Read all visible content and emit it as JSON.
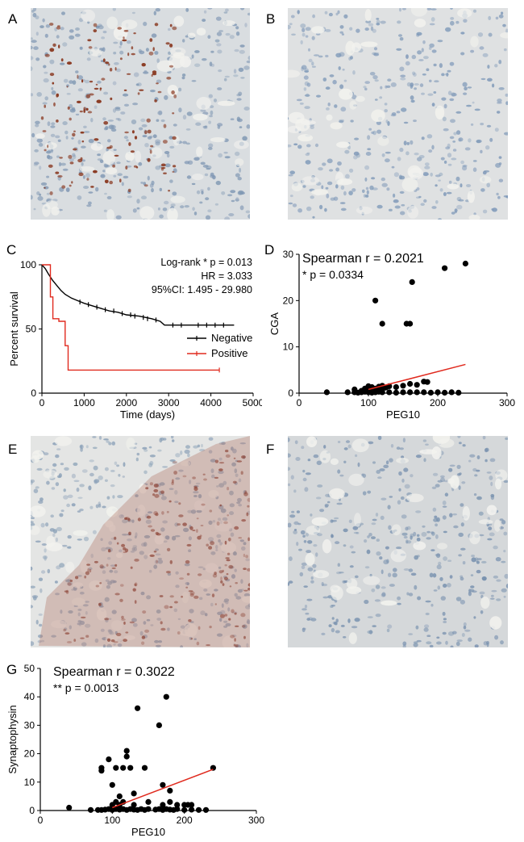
{
  "panels": {
    "A": "A",
    "B": "B",
    "C": "C",
    "D": "D",
    "E": "E",
    "F": "F",
    "G": "G"
  },
  "micrographs": [
    {
      "panel": "A",
      "stain": "brown-dots",
      "palette": {
        "bg": "#d9dde0",
        "cell": "#7f97b3",
        "mark": "#8a3a22"
      }
    },
    {
      "panel": "B",
      "stain": "none",
      "palette": {
        "bg": "#dfe1e2",
        "cell": "#7e98b8",
        "mark": ""
      }
    },
    {
      "panel": "E",
      "stain": "reddish-diffuse",
      "palette": {
        "bg": "#e4e5e4",
        "cell": "#8aa0b7",
        "mark": "#b07060"
      }
    },
    {
      "panel": "F",
      "stain": "none",
      "palette": {
        "bg": "#d5d8da",
        "cell": "#7790ae",
        "mark": ""
      }
    }
  ],
  "chart_data": [
    {
      "panel": "C",
      "type": "line",
      "xlabel": "Time (days)",
      "ylabel": "Percent survival",
      "xlim": [
        0,
        5000
      ],
      "ylim": [
        0,
        100
      ],
      "xticks": [
        "0",
        "1000",
        "2000",
        "3000",
        "4000",
        "5000"
      ],
      "yticks": [
        "0",
        "50",
        "100"
      ],
      "annotations": [
        "Log-rank * p = 0.013",
        "HR = 3.033",
        "95%CI: 1.495 - 29.980"
      ],
      "legend_position": "right",
      "series": [
        {
          "name": "Negative",
          "color": "#000000",
          "points": [
            [
              0,
              100
            ],
            [
              80,
              97
            ],
            [
              150,
              93
            ],
            [
              250,
              88
            ],
            [
              350,
              84
            ],
            [
              450,
              80
            ],
            [
              550,
              77
            ],
            [
              700,
              74
            ],
            [
              850,
              72
            ],
            [
              1000,
              70
            ],
            [
              1200,
              68
            ],
            [
              1400,
              66
            ],
            [
              1600,
              64
            ],
            [
              1800,
              63
            ],
            [
              2000,
              61
            ],
            [
              2300,
              60
            ],
            [
              2600,
              58
            ],
            [
              2800,
              56
            ],
            [
              2900,
              53
            ],
            [
              3500,
              53
            ],
            [
              4000,
              53
            ],
            [
              4550,
              53
            ]
          ],
          "censored": [
            [
              900,
              71
            ],
            [
              1100,
              69
            ],
            [
              1300,
              67
            ],
            [
              1500,
              65
            ],
            [
              1700,
              64
            ],
            [
              1900,
              62
            ],
            [
              2100,
              61
            ],
            [
              2200,
              60
            ],
            [
              2400,
              59
            ],
            [
              2500,
              58
            ],
            [
              2700,
              57
            ],
            [
              3100,
              53
            ],
            [
              3300,
              53
            ],
            [
              3700,
              53
            ],
            [
              3900,
              53
            ],
            [
              4100,
              53
            ],
            [
              4300,
              53
            ]
          ]
        },
        {
          "name": "Positive",
          "color": "#e02a1e",
          "points": [
            [
              0,
              100
            ],
            [
              200,
              100
            ],
            [
              200,
              75
            ],
            [
              260,
              75
            ],
            [
              260,
              58
            ],
            [
              400,
              58
            ],
            [
              400,
              56
            ],
            [
              550,
              56
            ],
            [
              550,
              37
            ],
            [
              620,
              37
            ],
            [
              620,
              18
            ],
            [
              4200,
              18
            ]
          ],
          "censored": [
            [
              4200,
              18
            ]
          ]
        }
      ]
    },
    {
      "panel": "D",
      "type": "scatter",
      "xlabel": "PEG10",
      "ylabel": "CGA",
      "xlim": [
        0,
        300
      ],
      "ylim": [
        0,
        30
      ],
      "xticks": [
        "0",
        "100",
        "200",
        "300"
      ],
      "yticks": [
        "0",
        "10",
        "20",
        "30"
      ],
      "annotations": [
        "Spearman r = 0.2021",
        "* p = 0.0334"
      ],
      "fit_line": {
        "color": "#e02a1e",
        "from": [
          100,
          0.8
        ],
        "to": [
          240,
          6.2
        ]
      },
      "points": [
        [
          40,
          0.2
        ],
        [
          70,
          0.2
        ],
        [
          80,
          0.2
        ],
        [
          85,
          0.1
        ],
        [
          90,
          0.2
        ],
        [
          95,
          0.3
        ],
        [
          100,
          0.2
        ],
        [
          105,
          0.1
        ],
        [
          110,
          0.2
        ],
        [
          115,
          0.3
        ],
        [
          120,
          0.2
        ],
        [
          130,
          0.2
        ],
        [
          140,
          0.1
        ],
        [
          150,
          0.2
        ],
        [
          160,
          0.2
        ],
        [
          170,
          0.2
        ],
        [
          180,
          0.2
        ],
        [
          190,
          0.1
        ],
        [
          200,
          0.2
        ],
        [
          210,
          0.1
        ],
        [
          220,
          0.2
        ],
        [
          230,
          0.1
        ],
        [
          80,
          0.8
        ],
        [
          90,
          0.5
        ],
        [
          95,
          1.0
        ],
        [
          100,
          1.5
        ],
        [
          105,
          1.3
        ],
        [
          110,
          1.0
        ],
        [
          115,
          1.4
        ],
        [
          120,
          1.6
        ],
        [
          125,
          1.2
        ],
        [
          130,
          1.5
        ],
        [
          140,
          1.3
        ],
        [
          150,
          1.6
        ],
        [
          160,
          2.0
        ],
        [
          170,
          1.8
        ],
        [
          180,
          2.5
        ],
        [
          185,
          2.4
        ],
        [
          100,
          0.9
        ],
        [
          120,
          0.8
        ],
        [
          110,
          20
        ],
        [
          120,
          15
        ],
        [
          155,
          15
        ],
        [
          160,
          15
        ],
        [
          163,
          24
        ],
        [
          210,
          27
        ],
        [
          240,
          28
        ]
      ]
    },
    {
      "panel": "G",
      "type": "scatter",
      "xlabel": "PEG10",
      "ylabel": "Synaptophysin",
      "xlim": [
        0,
        300
      ],
      "ylim": [
        0,
        50
      ],
      "xticks": [
        "0",
        "100",
        "200",
        "300"
      ],
      "yticks": [
        "0",
        "10",
        "20",
        "30",
        "40",
        "50"
      ],
      "annotations": [
        "Spearman r = 0.3022",
        "** p = 0.0013"
      ],
      "fit_line": {
        "color": "#e02a1e",
        "from": [
          100,
          1.0
        ],
        "to": [
          240,
          14.5
        ]
      },
      "points": [
        [
          40,
          1
        ],
        [
          70,
          0.2
        ],
        [
          80,
          0.2
        ],
        [
          85,
          0.2
        ],
        [
          90,
          0.3
        ],
        [
          95,
          0.5
        ],
        [
          100,
          0.2
        ],
        [
          105,
          0.5
        ],
        [
          110,
          0.3
        ],
        [
          115,
          0.5
        ],
        [
          120,
          0.2
        ],
        [
          125,
          0.5
        ],
        [
          130,
          0.3
        ],
        [
          135,
          0.2
        ],
        [
          140,
          0.5
        ],
        [
          145,
          0.2
        ],
        [
          150,
          0.5
        ],
        [
          160,
          0.3
        ],
        [
          165,
          0.5
        ],
        [
          170,
          0.2
        ],
        [
          175,
          0.5
        ],
        [
          180,
          0.3
        ],
        [
          185,
          0.2
        ],
        [
          190,
          0.5
        ],
        [
          200,
          0.2
        ],
        [
          210,
          0.3
        ],
        [
          220,
          0.2
        ],
        [
          230,
          0.2
        ],
        [
          100,
          2
        ],
        [
          105,
          3
        ],
        [
          110,
          2
        ],
        [
          115,
          3
        ],
        [
          130,
          2
        ],
        [
          150,
          3
        ],
        [
          170,
          2
        ],
        [
          180,
          3
        ],
        [
          190,
          2
        ],
        [
          200,
          2
        ],
        [
          205,
          2
        ],
        [
          210,
          2
        ],
        [
          85,
          15
        ],
        [
          85,
          14
        ],
        [
          95,
          18
        ],
        [
          100,
          9
        ],
        [
          105,
          15
        ],
        [
          110,
          5
        ],
        [
          115,
          15
        ],
        [
          120,
          19
        ],
        [
          120,
          21
        ],
        [
          125,
          15
        ],
        [
          130,
          6
        ],
        [
          135,
          36
        ],
        [
          145,
          15
        ],
        [
          165,
          30
        ],
        [
          175,
          40
        ],
        [
          170,
          9
        ],
        [
          180,
          7
        ],
        [
          240,
          15
        ]
      ]
    }
  ]
}
